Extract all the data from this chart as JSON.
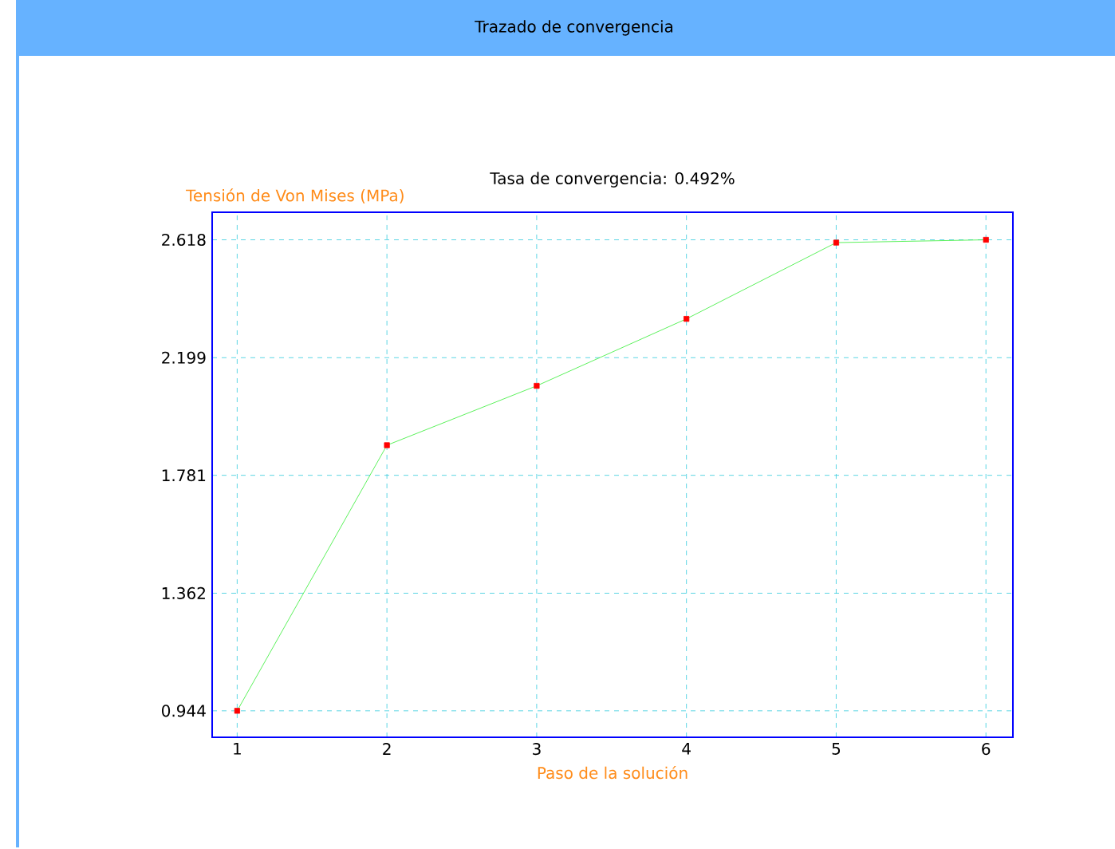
{
  "chart_data": {
    "type": "line",
    "title": "Trazado de convergencia",
    "subtitle": "Tasa de convergencia: 0.492%",
    "xlabel": "Paso de la solución",
    "ylabel": "Tensión de Von Mises (MPa)",
    "x": [
      1,
      2,
      3,
      4,
      5,
      6
    ],
    "series": [
      {
        "color": "#33ee33",
        "values": [
          0.944,
          1.888,
          2.099,
          2.337,
          2.608,
          2.618
        ]
      }
    ],
    "xlim": [
      0.833,
      6.18
    ],
    "ylim": [
      0.85,
      2.716
    ],
    "xticks": [
      1,
      2,
      3,
      4,
      5,
      6
    ],
    "yticks": [
      0.944,
      1.362,
      1.781,
      2.199,
      2.618
    ],
    "grid": true,
    "marker": "square",
    "line_style": "solid"
  }
}
